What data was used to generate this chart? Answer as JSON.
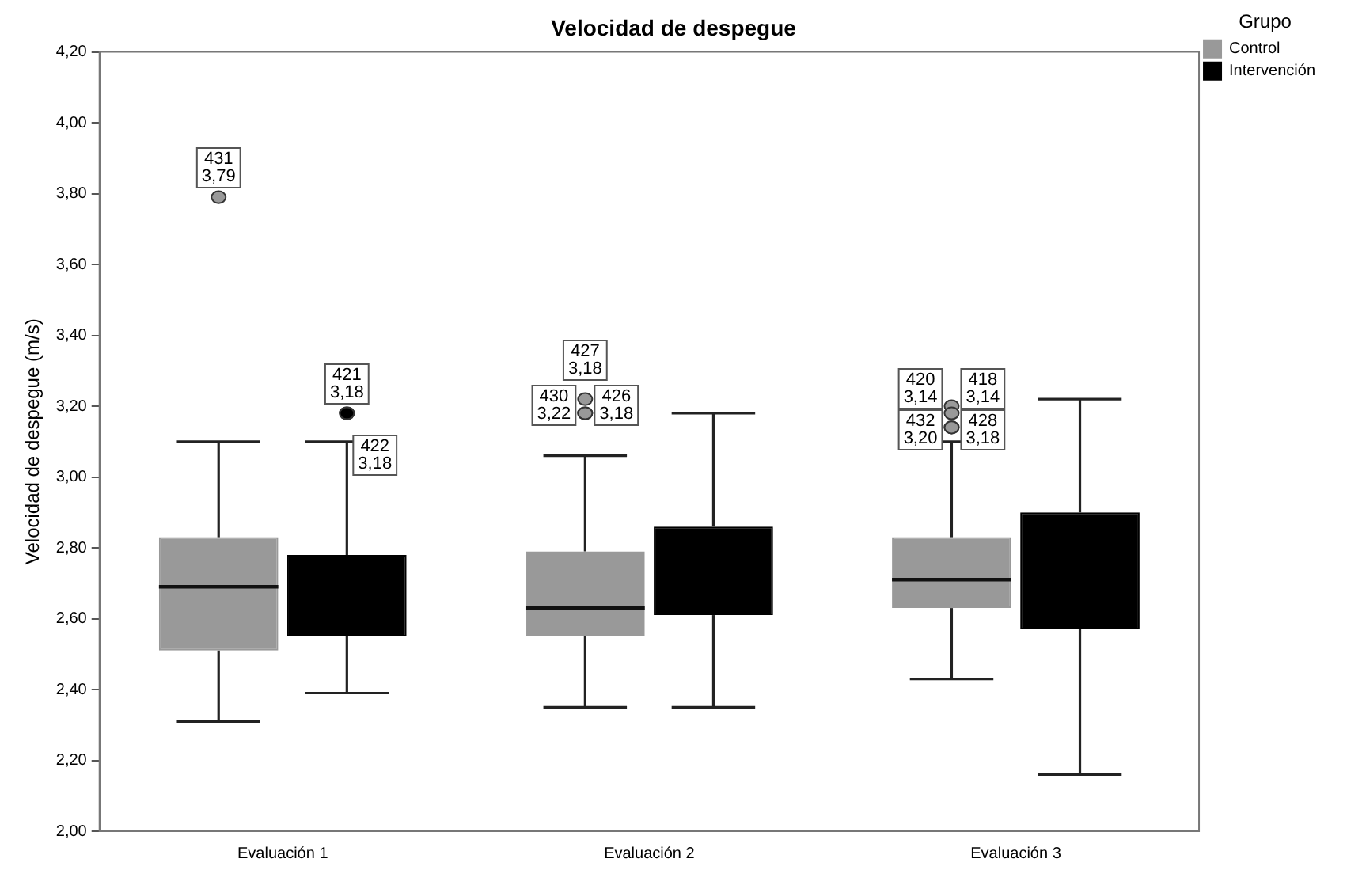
{
  "chart_data": {
    "type": "box",
    "title": "Velocidad de despegue",
    "ylabel": "Velocidad de despegue (m/s)",
    "legend_title": "Grupo",
    "legend": "top right",
    "grid": false,
    "categories": [
      "Evaluación 1",
      "Evaluación 2",
      "Evaluación 3"
    ],
    "ylim": [
      2.0,
      4.2
    ],
    "yticks": [
      {
        "value": 2.0,
        "label": "2,00"
      },
      {
        "value": 2.2,
        "label": "2,20"
      },
      {
        "value": 2.4,
        "label": "2,40"
      },
      {
        "value": 2.6,
        "label": "2,60"
      },
      {
        "value": 2.8,
        "label": "2,80"
      },
      {
        "value": 3.0,
        "label": "3,00"
      },
      {
        "value": 3.2,
        "label": "3,20"
      },
      {
        "value": 3.4,
        "label": "3,40"
      },
      {
        "value": 3.6,
        "label": "3,60"
      },
      {
        "value": 3.8,
        "label": "3,80"
      },
      {
        "value": 4.0,
        "label": "4,00"
      },
      {
        "value": 4.2,
        "label": "4,20"
      }
    ],
    "series": [
      {
        "name": "Control",
        "color": "#999999",
        "boxes": [
          {
            "low": 2.31,
            "q1": 2.51,
            "median": 2.69,
            "q3": 2.83,
            "high": 3.1,
            "outliers": [
              3.79
            ]
          },
          {
            "low": 2.35,
            "q1": 2.55,
            "median": 2.63,
            "q3": 2.79,
            "high": 3.06,
            "outliers": [
              3.22,
              3.18,
              3.18
            ]
          },
          {
            "low": 2.43,
            "q1": 2.63,
            "median": 2.71,
            "q3": 2.83,
            "high": 3.1,
            "outliers": [
              3.14,
              3.14,
              3.2,
              3.18
            ]
          }
        ]
      },
      {
        "name": "Intervención",
        "color": "#000000",
        "boxes": [
          {
            "low": 2.39,
            "q1": 2.55,
            "median": null,
            "q3": 2.78,
            "high": 3.1,
            "outliers": [
              3.18,
              3.18
            ]
          },
          {
            "low": 2.35,
            "q1": 2.61,
            "median": null,
            "q3": 2.86,
            "high": 3.18
          },
          {
            "low": 2.16,
            "q1": 2.57,
            "median": null,
            "q3": 2.9,
            "high": 3.22
          }
        ]
      }
    ],
    "annotations": [
      "431\n3,79",
      "430\n3,22",
      "427\n3,18",
      "426\n3,18",
      "420\n3,14",
      "418\n3,14",
      "432\n3,20",
      "428\n3,18",
      "421\n3,18",
      "422\n3,18"
    ]
  }
}
